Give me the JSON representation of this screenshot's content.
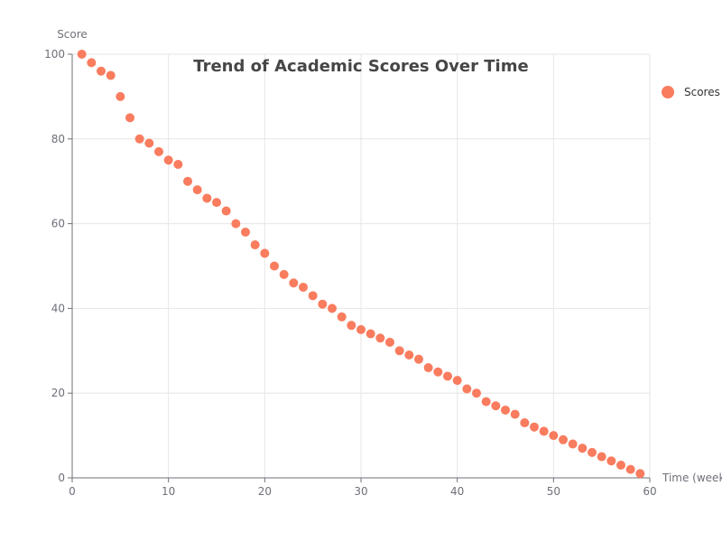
{
  "chart_data": {
    "type": "scatter",
    "title": "Trend of Academic Scores Over Time",
    "xlabel": "Time (weeks)",
    "ylabel": "Score",
    "xlim": [
      0,
      60
    ],
    "ylim": [
      0,
      100
    ],
    "xticks": [
      0,
      10,
      20,
      30,
      40,
      50,
      60
    ],
    "yticks": [
      0,
      20,
      40,
      60,
      80,
      100
    ],
    "grid": true,
    "legend_position": "right",
    "colors": {
      "series": "#f97c5f",
      "grid": "#e6e6e6",
      "axis": "#6e7079",
      "title": "#464646"
    },
    "series": [
      {
        "name": "Scores",
        "x": [
          1,
          2,
          3,
          4,
          5,
          6,
          7,
          8,
          9,
          10,
          11,
          12,
          13,
          14,
          15,
          16,
          17,
          18,
          19,
          20,
          21,
          22,
          23,
          24,
          25,
          26,
          27,
          28,
          29,
          30,
          31,
          32,
          33,
          34,
          35,
          36,
          37,
          38,
          39,
          40,
          41,
          42,
          43,
          44,
          45,
          46,
          47,
          48,
          49,
          50,
          51,
          52,
          53,
          54,
          55,
          56,
          57,
          58,
          59
        ],
        "y": [
          100,
          98,
          96,
          95,
          90,
          85,
          80,
          79,
          77,
          75,
          74,
          70,
          68,
          66,
          65,
          63,
          60,
          58,
          55,
          53,
          50,
          48,
          46,
          45,
          43,
          41,
          40,
          38,
          36,
          35,
          34,
          33,
          32,
          30,
          29,
          28,
          26,
          25,
          24,
          23,
          21,
          20,
          18,
          17,
          16,
          15,
          13,
          12,
          11,
          10,
          9,
          8,
          7,
          6,
          5,
          4,
          3,
          2,
          1
        ]
      }
    ]
  }
}
